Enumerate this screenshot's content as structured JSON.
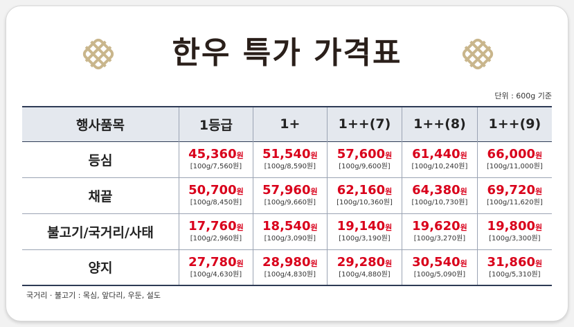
{
  "title": "한우 특가 가격표",
  "unit_note": "단위 : 600g 기준",
  "currency": "원",
  "table": {
    "header": [
      "행사품목",
      "1등급",
      "1+",
      "1++(7)",
      "1++(8)",
      "1++(9)"
    ],
    "rows": [
      {
        "item": "등심",
        "cells": [
          {
            "price": "45,360",
            "per100": "[100g/7,560원]"
          },
          {
            "price": "51,540",
            "per100": "[100g/8,590원]"
          },
          {
            "price": "57,600",
            "per100": "[100g/9,600원]"
          },
          {
            "price": "61,440",
            "per100": "[100g/10,240원]"
          },
          {
            "price": "66,000",
            "per100": "[100g/11,000원]"
          }
        ]
      },
      {
        "item": "채끝",
        "cells": [
          {
            "price": "50,700",
            "per100": "[100g/8,450원]"
          },
          {
            "price": "57,960",
            "per100": "[100g/9,660원]"
          },
          {
            "price": "62,160",
            "per100": "[100g/10,360원]"
          },
          {
            "price": "64,380",
            "per100": "[100g/10,730원]"
          },
          {
            "price": "69,720",
            "per100": "[100g/11,620원]"
          }
        ]
      },
      {
        "item": "불고기/국거리/사태",
        "cells": [
          {
            "price": "17,760",
            "per100": "[100g/2,960원]"
          },
          {
            "price": "18,540",
            "per100": "[100g/3,090원]"
          },
          {
            "price": "19,140",
            "per100": "[100g/3,190원]"
          },
          {
            "price": "19,620",
            "per100": "[100g/3,270원]"
          },
          {
            "price": "19,800",
            "per100": "[100g/3,300원]"
          }
        ]
      },
      {
        "item": "양지",
        "cells": [
          {
            "price": "27,780",
            "per100": "[100g/4,630원]"
          },
          {
            "price": "28,980",
            "per100": "[100g/4,830원]"
          },
          {
            "price": "29,280",
            "per100": "[100g/4,880원]"
          },
          {
            "price": "30,540",
            "per100": "[100g/5,090원]"
          },
          {
            "price": "31,860",
            "per100": "[100g/5,310원]"
          }
        ]
      }
    ]
  },
  "footnote": "국거리 · 불고기 : 목심, 앞다리, 우둔, 설도"
}
